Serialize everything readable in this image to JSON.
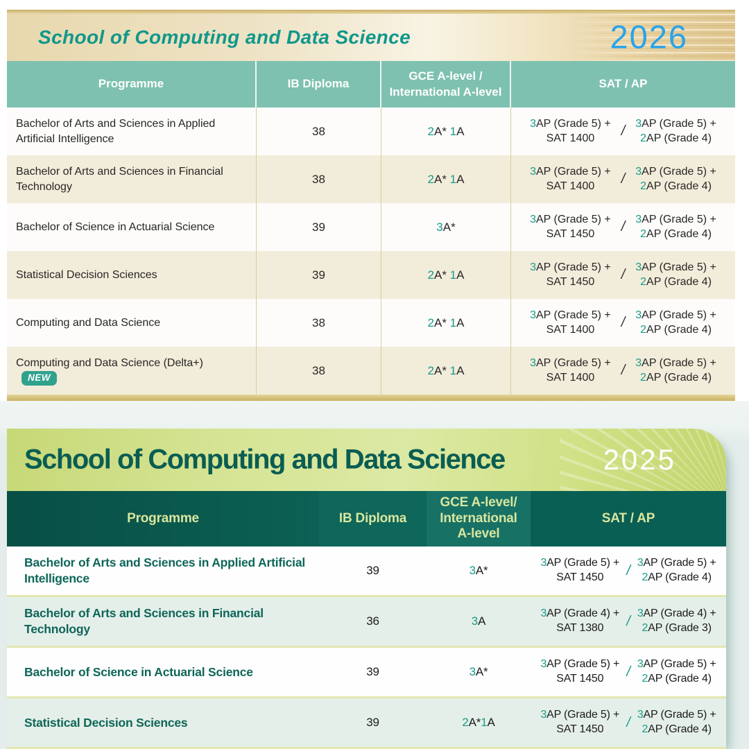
{
  "table_2026": {
    "year": "2026",
    "title": "School of Computing and Data Science",
    "headers": [
      "Programme",
      "IB Diploma",
      "GCE A-level /\nInternational A-level",
      "SAT / AP"
    ],
    "separator": "/",
    "new_badge_label": "NEW",
    "rows": [
      {
        "programme": "Bachelor of Arts and Sciences in Applied Artificial Intelligence",
        "is_new": false,
        "ib": "38",
        "a_level": "2A* 1A",
        "sat_ap_option1": "3AP (Grade 5) +\nSAT 1400",
        "sat_ap_option2": "3AP (Grade 5) +\n2AP (Grade 4)"
      },
      {
        "programme": "Bachelor of Arts and Sciences in Financial Technology",
        "is_new": false,
        "ib": "38",
        "a_level": "2A* 1A",
        "sat_ap_option1": "3AP (Grade 5) +\nSAT 1400",
        "sat_ap_option2": "3AP (Grade 5) +\n2AP (Grade 4)"
      },
      {
        "programme": "Bachelor of Science in Actuarial Science",
        "is_new": false,
        "ib": "39",
        "a_level": "3A*",
        "sat_ap_option1": "3AP (Grade 5) +\nSAT 1450",
        "sat_ap_option2": "3AP (Grade 5) +\n2AP (Grade 4)"
      },
      {
        "programme": "Statistical Decision Sciences",
        "is_new": false,
        "ib": "39",
        "a_level": "2A* 1A",
        "sat_ap_option1": "3AP (Grade 5) +\nSAT 1450",
        "sat_ap_option2": "3AP (Grade 5) +\n2AP (Grade 4)"
      },
      {
        "programme": "Computing and Data Science",
        "is_new": false,
        "ib": "38",
        "a_level": "2A* 1A",
        "sat_ap_option1": "3AP (Grade 5) +\nSAT 1400",
        "sat_ap_option2": "3AP (Grade 5) +\n2AP (Grade 4)"
      },
      {
        "programme": "Computing and Data Science (Delta+)",
        "is_new": true,
        "ib": "38",
        "a_level": "2A* 1A",
        "sat_ap_option1": "3AP (Grade 5) +\nSAT 1400",
        "sat_ap_option2": "3AP (Grade 5) +\n2AP (Grade 4)"
      }
    ],
    "colors": {
      "banner_tan": "#e8d8ad",
      "title_teal": "#10978a",
      "year_blue": "#2aa3ea",
      "header_teal": "#7ec1b0",
      "row_beige": "#f2ecda",
      "accent_digit_teal": "#169b89",
      "new_badge_teal": "#2fa28e"
    }
  },
  "table_2025": {
    "year": "2025",
    "title": "School of Computing and Data Science",
    "headers": [
      "Programme",
      "IB Diploma",
      "GCE A-level/\nInternational\nA-level",
      "SAT / AP"
    ],
    "separator": "/",
    "rows": [
      {
        "programme": "Bachelor of Arts and Sciences in Applied Artificial Intelligence",
        "is_new": false,
        "ib": "39",
        "a_level": "3A*",
        "sat_ap_option1": "3AP (Grade 5) +\nSAT 1450",
        "sat_ap_option2": "3AP (Grade 5) +\n2AP (Grade 4)"
      },
      {
        "programme": "Bachelor of Arts and Sciences in Financial Technology",
        "is_new": false,
        "ib": "36",
        "a_level": "3A",
        "sat_ap_option1": "3AP (Grade 4) +\nSAT 1380",
        "sat_ap_option2": "3AP (Grade 4) +\n2AP (Grade 3)"
      },
      {
        "programme": "Bachelor of Science in Actuarial Science",
        "is_new": false,
        "ib": "39",
        "a_level": "3A*",
        "sat_ap_option1": "3AP (Grade 5) +\nSAT 1450",
        "sat_ap_option2": "3AP (Grade 5) +\n2AP (Grade 4)"
      },
      {
        "programme": "Statistical Decision Sciences",
        "is_new": false,
        "ib": "39",
        "a_level": "2A*1A",
        "sat_ap_option1": "3AP (Grade 5) +\nSAT 1450",
        "sat_ap_option2": "3AP (Grade 5) +\n2AP (Grade 4)"
      }
    ],
    "colors": {
      "banner_green": "#cfe084",
      "title_green": "#0a5d52",
      "year_white": "#ffffff",
      "header_dark_green": "#0a5f54",
      "header_text_green": "#d9e69e",
      "row_pale_green": "#e5efe9",
      "programme_teal": "#0e6659",
      "accent_digit_teal": "#169b89"
    }
  }
}
